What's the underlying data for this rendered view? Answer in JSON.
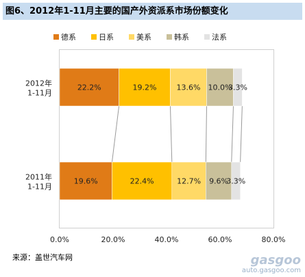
{
  "title": "图6、2012年1-11月主要的国产外资派系市场份额变化",
  "source": "来源：盖世汽车网",
  "watermark": {
    "logo": "gasgoo",
    "url": "auto.gasgoo.com"
  },
  "chart_data": {
    "type": "bar",
    "orientation": "horizontal",
    "stacked": true,
    "categories": [
      "2012年\n1-11月",
      "2011年\n1-11月"
    ],
    "series": [
      {
        "name": "德系",
        "color": "#e07b17",
        "values": [
          22.2,
          19.6
        ]
      },
      {
        "name": "日系",
        "color": "#ffc000",
        "values": [
          19.2,
          22.4
        ]
      },
      {
        "name": "美系",
        "color": "#ffd966",
        "values": [
          13.6,
          12.7
        ]
      },
      {
        "name": "韩系",
        "color": "#c9c09a",
        "values": [
          10.0,
          9.6
        ]
      },
      {
        "name": "法系",
        "color": "#e3e3e3",
        "values": [
          3.3,
          3.3
        ]
      }
    ],
    "xlim": [
      0,
      80
    ],
    "xticks": [
      "0.0%",
      "20.0%",
      "40.0%",
      "60.0%",
      "80.0%"
    ],
    "legend_position": "top",
    "series_lines": true
  }
}
